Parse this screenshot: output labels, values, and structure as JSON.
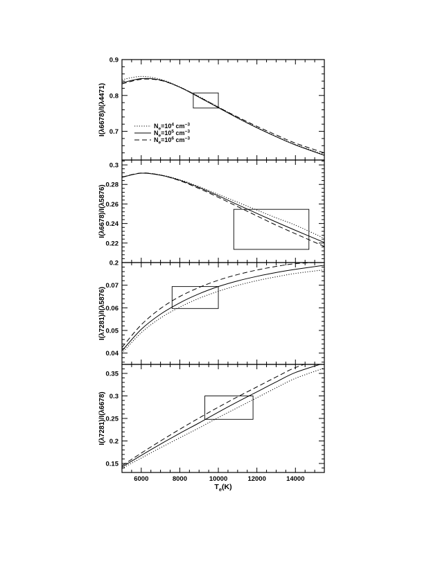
{
  "chart_data": [
    {
      "type": "line",
      "ylabel": "I(λ6678)/I(λ4471)",
      "xlim": [
        5000,
        15500
      ],
      "ylim": [
        0.62,
        0.9
      ],
      "yticks": [
        0.7,
        0.8,
        0.9
      ],
      "yticklabels": [
        "0.7",
        "0.8",
        "0.9"
      ],
      "legend": {
        "placement": "center-left",
        "entries": [
          {
            "base": "N",
            "sub": "e",
            "mid": "=10",
            "sup": "4",
            "unit": " cm",
            "unitsup": "−3",
            "style": "dotted"
          },
          {
            "base": "N",
            "sub": "e",
            "mid": "=10",
            "sup": "5",
            "unit": " cm",
            "unitsup": "−3",
            "style": "solid"
          },
          {
            "base": "N",
            "sub": "e",
            "mid": "=10",
            "sup": "6",
            "unit": " cm",
            "unitsup": "−3",
            "style": "dashed"
          }
        ]
      },
      "series": [
        {
          "style": "dotted",
          "x": [
            5000,
            6000,
            7000,
            8000,
            9000,
            10000,
            11000,
            12000,
            13000,
            14000,
            15500
          ],
          "y": [
            0.844,
            0.853,
            0.845,
            0.824,
            0.797,
            0.768,
            0.739,
            0.711,
            0.686,
            0.663,
            0.635
          ]
        },
        {
          "style": "solid",
          "x": [
            5000,
            6000,
            7000,
            8000,
            9000,
            10000,
            11000,
            12000,
            13000,
            14000,
            15500
          ],
          "y": [
            0.835,
            0.847,
            0.843,
            0.823,
            0.795,
            0.766,
            0.737,
            0.71,
            0.685,
            0.662,
            0.633
          ]
        },
        {
          "style": "dashed",
          "x": [
            5000,
            6000,
            7000,
            8000,
            9000,
            10000,
            11000,
            12000,
            13000,
            14000,
            15500
          ],
          "y": [
            0.832,
            0.845,
            0.842,
            0.823,
            0.796,
            0.767,
            0.74,
            0.714,
            0.69,
            0.667,
            0.64
          ]
        }
      ],
      "box": {
        "x": [
          8700,
          10000
        ],
        "y": [
          0.765,
          0.807
        ]
      }
    },
    {
      "type": "line",
      "ylabel": "I(λ6678)/I(λ5876)",
      "xlim": [
        5000,
        15500
      ],
      "ylim": [
        0.2,
        0.305
      ],
      "yticks": [
        0.22,
        0.24,
        0.26,
        0.28,
        0.3
      ],
      "yticklabels": [
        "0.22",
        "0.24",
        "0.26",
        "0.28",
        "0.3"
      ],
      "series": [
        {
          "style": "dotted",
          "x": [
            5000,
            6000,
            7000,
            8000,
            9000,
            10000,
            11000,
            12000,
            13000,
            14000,
            15500
          ],
          "y": [
            0.2875,
            0.2915,
            0.2898,
            0.2848,
            0.2778,
            0.2698,
            0.2618,
            0.2538,
            0.2458,
            0.2383,
            0.2248
          ]
        },
        {
          "style": "solid",
          "x": [
            5000,
            6000,
            7000,
            8000,
            9000,
            10000,
            11000,
            12000,
            13000,
            14000,
            15500
          ],
          "y": [
            0.2873,
            0.2915,
            0.2895,
            0.2843,
            0.2769,
            0.2683,
            0.2593,
            0.2503,
            0.2415,
            0.233,
            0.2205
          ]
        },
        {
          "style": "dashed",
          "x": [
            5000,
            6000,
            7000,
            8000,
            9000,
            10000,
            11000,
            12000,
            13000,
            14000,
            15500
          ],
          "y": [
            0.2875,
            0.2917,
            0.2895,
            0.2838,
            0.2758,
            0.2668,
            0.2573,
            0.2478,
            0.2383,
            0.2295,
            0.2165
          ]
        }
      ],
      "box": {
        "x": [
          10800,
          14700
        ],
        "y": [
          0.2135,
          0.2545
        ]
      }
    },
    {
      "type": "line",
      "ylabel": "I(λ7281)/I(λ5876)",
      "xlim": [
        5000,
        15500
      ],
      "ylim": [
        0.035,
        0.08
      ],
      "topticklabel": "0.2",
      "yticks": [
        0.04,
        0.05,
        0.06,
        0.07
      ],
      "yticklabels": [
        "0.04",
        "0.05",
        "0.06",
        "0.07"
      ],
      "series": [
        {
          "style": "dotted",
          "x": [
            5000,
            6000,
            7000,
            8000,
            9000,
            10000,
            11000,
            12000,
            13000,
            14000,
            15500
          ],
          "y": [
            0.04,
            0.049,
            0.0555,
            0.0603,
            0.0642,
            0.0673,
            0.0699,
            0.072,
            0.0737,
            0.0752,
            0.0768
          ]
        },
        {
          "style": "solid",
          "x": [
            5000,
            6000,
            7000,
            8000,
            9000,
            10000,
            11000,
            12000,
            13000,
            14000,
            15500
          ],
          "y": [
            0.041,
            0.0505,
            0.0572,
            0.0622,
            0.0662,
            0.0694,
            0.0719,
            0.0739,
            0.0756,
            0.077,
            0.0788
          ]
        },
        {
          "style": "dashed",
          "x": [
            5000,
            6000,
            7000,
            8000,
            9000,
            10000,
            11000,
            12000,
            13000,
            14000,
            15500
          ],
          "y": [
            0.0425,
            0.0525,
            0.0597,
            0.065,
            0.069,
            0.0722,
            0.0747,
            0.0767,
            0.0783,
            0.0795,
            0.0802
          ]
        }
      ],
      "box": {
        "x": [
          7600,
          10000
        ],
        "y": [
          0.0597,
          0.0694
        ]
      }
    },
    {
      "type": "line",
      "ylabel": "I(λ7281)/I(λ6678)",
      "xlabel": {
        "base": "T",
        "sub": "e",
        "rest": "(K)"
      },
      "xlim": [
        5000,
        15500
      ],
      "xticks": [
        6000,
        8000,
        10000,
        12000,
        14000
      ],
      "xticklabels": [
        "6000",
        "8000",
        "10000",
        "12000",
        "14000"
      ],
      "ylim": [
        0.13,
        0.37
      ],
      "yticks": [
        0.15,
        0.2,
        0.25,
        0.3,
        0.35
      ],
      "yticklabels": [
        "0.15",
        "0.2",
        "0.25",
        "0.3",
        "0.35"
      ],
      "series": [
        {
          "style": "dotted",
          "x": [
            5000,
            6000,
            7000,
            8000,
            9000,
            10000,
            11000,
            12000,
            13000,
            14000,
            15500
          ],
          "y": [
            0.139,
            0.162,
            0.185,
            0.207,
            0.229,
            0.252,
            0.274,
            0.296,
            0.318,
            0.339,
            0.362
          ]
        },
        {
          "style": "solid",
          "x": [
            5000,
            6000,
            7000,
            8000,
            9000,
            10000,
            11000,
            12000,
            13000,
            14000,
            15500
          ],
          "y": [
            0.142,
            0.168,
            0.193,
            0.217,
            0.24,
            0.264,
            0.287,
            0.309,
            0.331,
            0.352,
            0.373
          ]
        },
        {
          "style": "dashed",
          "x": [
            5000,
            6000,
            7000,
            8000,
            9000,
            10000,
            11000,
            12000,
            13000,
            14000,
            15500
          ],
          "y": [
            0.145,
            0.173,
            0.2,
            0.226,
            0.251,
            0.275,
            0.298,
            0.32,
            0.342,
            0.363,
            0.385
          ]
        }
      ],
      "box": {
        "x": [
          9300,
          11800
        ],
        "y": [
          0.248,
          0.3
        ]
      }
    }
  ]
}
